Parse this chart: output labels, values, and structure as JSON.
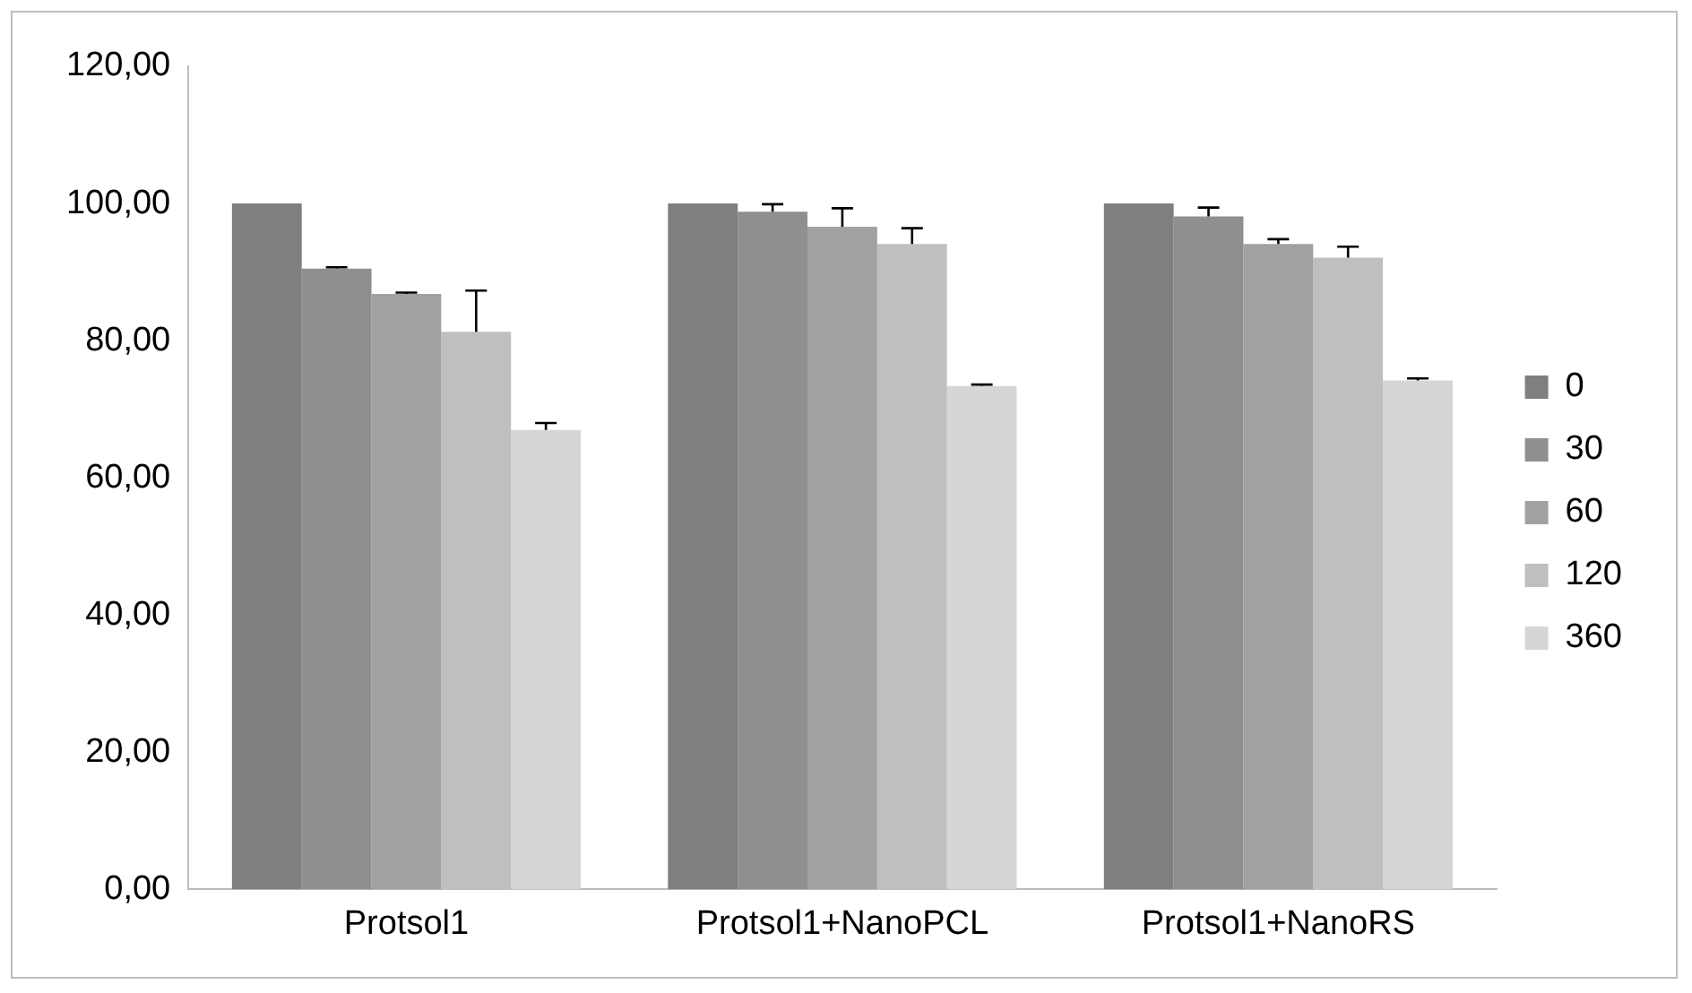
{
  "chart_data": {
    "type": "bar",
    "categories": [
      "Protsol1",
      "Protsol1+NanoPCL",
      "Protsol1+NanoRS"
    ],
    "series": [
      {
        "name": "0",
        "color": "#7f7f7f",
        "values": [
          100,
          100,
          100
        ]
      },
      {
        "name": "30",
        "color": "#8f8f8f",
        "values": [
          90.5,
          98.8,
          98.1
        ],
        "errors": [
          [
            90.5,
            90.7
          ],
          [
            98.8,
            99.9
          ],
          [
            98.1,
            99.4
          ]
        ]
      },
      {
        "name": "60",
        "color": "#a1a1a1",
        "values": [
          86.8,
          96.6,
          94.1
        ],
        "errors": [
          [
            86.8,
            87.0
          ],
          [
            96.6,
            99.3
          ],
          [
            94.1,
            94.8
          ]
        ]
      },
      {
        "name": "120",
        "color": "#bfbfbf",
        "values": [
          81.3,
          94.1,
          92.1
        ],
        "errors": [
          [
            81.3,
            87.3
          ],
          [
            94.1,
            96.4
          ],
          [
            92.1,
            93.7
          ]
        ]
      },
      {
        "name": "360",
        "color": "#d6d6d6",
        "values": [
          67.0,
          73.4,
          74.2
        ],
        "errors": [
          [
            67.0,
            68.0
          ],
          [
            73.4,
            73.6
          ],
          [
            74.2,
            74.5
          ]
        ]
      }
    ],
    "ylim": [
      0,
      120
    ],
    "yticks": [
      {
        "value": 0,
        "label": "0,00"
      },
      {
        "value": 20,
        "label": "20,00"
      },
      {
        "value": 40,
        "label": "40,00"
      },
      {
        "value": 60,
        "label": "60,00"
      },
      {
        "value": 80,
        "label": "80,00"
      },
      {
        "value": 100,
        "label": "100,00"
      },
      {
        "value": 120,
        "label": "120,00"
      }
    ],
    "grid": false,
    "legend": "right"
  }
}
